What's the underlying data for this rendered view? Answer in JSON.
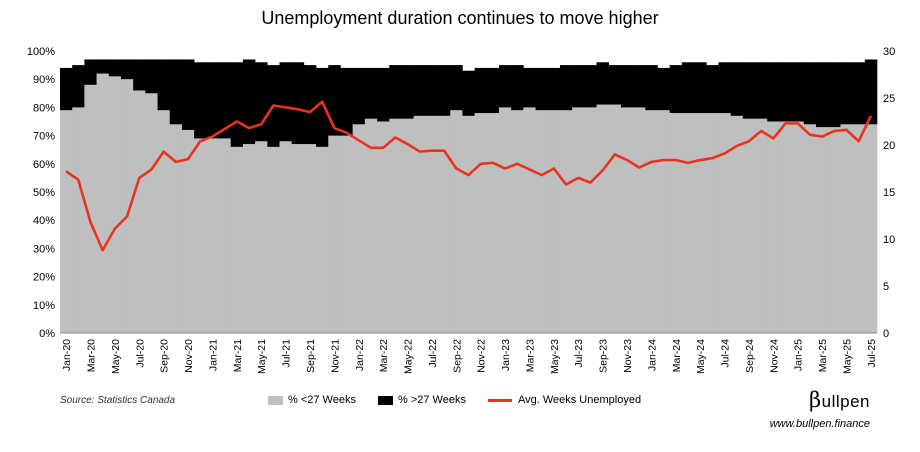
{
  "chart_data": {
    "type": "bar",
    "title": "Unemployment duration continues to move higher",
    "source": "Source: Statistics Canada",
    "brand": {
      "symbol": "β",
      "name": "ullpen"
    },
    "website": "www.bullpen.finance",
    "legend_position": "bottom",
    "x": [
      "Jan-20",
      "Feb-20",
      "Mar-20",
      "Apr-20",
      "May-20",
      "Jun-20",
      "Jul-20",
      "Aug-20",
      "Sep-20",
      "Oct-20",
      "Nov-20",
      "Dec-20",
      "Jan-21",
      "Feb-21",
      "Mar-21",
      "Apr-21",
      "May-21",
      "Jun-21",
      "Jul-21",
      "Aug-21",
      "Sep-21",
      "Oct-21",
      "Nov-21",
      "Dec-21",
      "Jan-22",
      "Feb-22",
      "Mar-22",
      "Apr-22",
      "May-22",
      "Jun-22",
      "Jul-22",
      "Aug-22",
      "Sep-22",
      "Oct-22",
      "Nov-22",
      "Dec-22",
      "Jan-23",
      "Feb-23",
      "Mar-23",
      "Apr-23",
      "May-23",
      "Jun-23",
      "Jul-23",
      "Aug-23",
      "Sep-23",
      "Oct-23",
      "Nov-23",
      "Dec-23",
      "Jan-24",
      "Feb-24",
      "Mar-24",
      "Apr-24",
      "May-24",
      "Jun-24",
      "Jul-24",
      "Aug-24",
      "Sep-24",
      "Oct-24",
      "Nov-24",
      "Dec-24",
      "Jan-25",
      "Feb-25",
      "Mar-25",
      "Apr-25",
      "May-25",
      "Jun-25",
      "Jul-25"
    ],
    "x_tick_labels": [
      "Jan-20",
      "Mar-20",
      "May-20",
      "Jul-20",
      "Sep-20",
      "Nov-20",
      "Jan-21",
      "Mar-21",
      "May-21",
      "Jul-21",
      "Sep-21",
      "Nov-21",
      "Jan-22",
      "Mar-22",
      "May-22",
      "Jul-22",
      "Sep-22",
      "Nov-22",
      "Jan-23",
      "Mar-23",
      "May-23",
      "Jul-23",
      "Sep-23",
      "Nov-23",
      "Jan-24",
      "Mar-24",
      "May-24",
      "Jul-24",
      "Sep-24",
      "Nov-24",
      "Jan-25",
      "Mar-25",
      "May-25",
      "Jul-25"
    ],
    "y_left": {
      "min": 0,
      "max": 100,
      "ticks": [
        "0%",
        "10%",
        "20%",
        "30%",
        "40%",
        "50%",
        "60%",
        "70%",
        "80%",
        "90%",
        "100%"
      ]
    },
    "y_right": {
      "min": 0,
      "max": 30,
      "ticks": [
        "0",
        "5",
        "10",
        "15",
        "20",
        "25",
        "30"
      ]
    },
    "series": [
      {
        "name": "% <27 Weeks",
        "kind": "bar",
        "axis": "left",
        "color": "#bfbfbf",
        "values": [
          79,
          80,
          88,
          92,
          91,
          90,
          86,
          85,
          79,
          74,
          72,
          69,
          69,
          69,
          66,
          67,
          68,
          66,
          68,
          67,
          67,
          66,
          70,
          70,
          74,
          76,
          75,
          76,
          76,
          77,
          77,
          77,
          79,
          77,
          78,
          78,
          80,
          79,
          80,
          79,
          79,
          79,
          80,
          80,
          81,
          81,
          80,
          80,
          79,
          79,
          78,
          78,
          78,
          78,
          78,
          77,
          76,
          76,
          75,
          75,
          75,
          74,
          73,
          73,
          74,
          74,
          74
        ]
      },
      {
        "name": "% >27 Weeks",
        "kind": "bar",
        "axis": "left",
        "color": "#000000",
        "values": [
          15,
          15,
          9,
          5,
          6,
          7,
          11,
          12,
          18,
          23,
          25,
          27,
          27,
          27,
          30,
          30,
          28,
          29,
          28,
          29,
          28,
          28,
          25,
          24,
          20,
          18,
          19,
          19,
          19,
          18,
          18,
          18,
          16,
          16,
          16,
          16,
          15,
          16,
          14,
          15,
          15,
          16,
          15,
          15,
          15,
          14,
          15,
          15,
          16,
          15,
          17,
          18,
          18,
          17,
          18,
          19,
          20,
          20,
          21,
          21,
          21,
          22,
          23,
          23,
          22,
          22,
          23
        ]
      },
      {
        "name": "Avg. Weeks Unemployed",
        "kind": "line",
        "axis": "right",
        "color": "#e8341c",
        "values": [
          17.2,
          16.3,
          11.8,
          8.8,
          11.1,
          12.4,
          16.5,
          17.4,
          19.3,
          18.2,
          18.5,
          20.4,
          20.9,
          21.7,
          22.5,
          21.8,
          22.2,
          24.2,
          24.0,
          23.8,
          23.5,
          24.6,
          21.8,
          21.3,
          20.5,
          19.7,
          19.7,
          20.8,
          20.1,
          19.3,
          19.4,
          19.4,
          17.5,
          16.8,
          18.0,
          18.1,
          17.5,
          18.0,
          17.4,
          16.8,
          17.5,
          15.8,
          16.5,
          16.0,
          17.3,
          19.0,
          18.4,
          17.6,
          18.2,
          18.4,
          18.4,
          18.1,
          18.4,
          18.6,
          19.1,
          19.9,
          20.4,
          21.5,
          20.7,
          22.3,
          22.3,
          21.1,
          20.9,
          21.5,
          21.6,
          20.4,
          23.1
        ]
      }
    ]
  }
}
